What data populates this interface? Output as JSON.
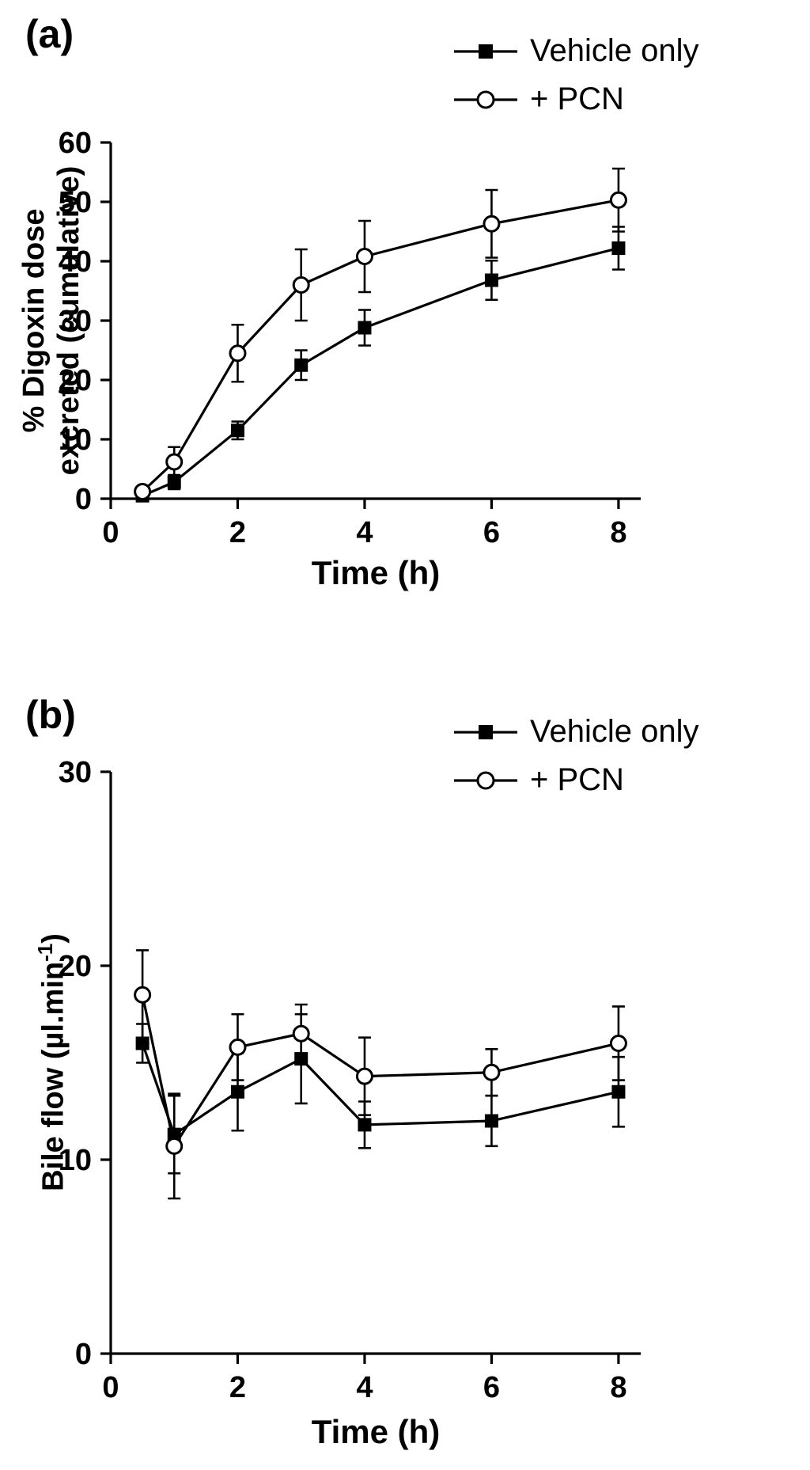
{
  "figure": {
    "panels": [
      {
        "panel_label": "(a)",
        "ylabel_line1": "% Digoxin dose",
        "ylabel_line2": "excreted (cumulative)",
        "xlabel": "Time (h)"
      },
      {
        "panel_label": "(b)",
        "ylabel_prefix": "Bile flow (µl.min",
        "ylabel_sup": "-1",
        "ylabel_suffix": ")",
        "xlabel": "Time (h)"
      }
    ],
    "colors": {
      "line": "#000000",
      "background": "#ffffff"
    }
  },
  "chart_data": [
    {
      "type": "line",
      "panel": "a",
      "title": "",
      "xlabel": "Time (h)",
      "ylabel": "% Digoxin dose excreted (cumulative)",
      "x": [
        0.5,
        1,
        2,
        3,
        4,
        6,
        8
      ],
      "xlim": [
        0,
        8.35
      ],
      "ylim": [
        0,
        60
      ],
      "xticks": [
        0,
        2,
        4,
        6,
        8
      ],
      "yticks": [
        0,
        10,
        20,
        30,
        40,
        50,
        60
      ],
      "grid": false,
      "legend_position": "top-right",
      "series": [
        {
          "name": "Vehicle only",
          "marker": "filled-square",
          "values": [
            0.5,
            2.8,
            11.5,
            22.5,
            28.8,
            36.8,
            42.2
          ],
          "errors": [
            0.6,
            1.2,
            1.5,
            2.5,
            3.0,
            3.3,
            3.6
          ]
        },
        {
          "name": "+ PCN",
          "marker": "open-circle",
          "values": [
            1.2,
            6.2,
            24.5,
            36.0,
            40.8,
            46.3,
            50.3
          ],
          "errors": [
            0.8,
            2.5,
            4.8,
            6.0,
            6.0,
            5.7,
            5.3
          ]
        }
      ]
    },
    {
      "type": "line",
      "panel": "b",
      "title": "",
      "xlabel": "Time (h)",
      "ylabel": "Bile flow (µl.min-1)",
      "x": [
        0.5,
        1,
        2,
        3,
        4,
        6,
        8
      ],
      "xlim": [
        0,
        8.35
      ],
      "ylim": [
        0,
        30
      ],
      "xticks": [
        0,
        2,
        4,
        6,
        8
      ],
      "yticks": [
        0,
        10,
        20,
        30
      ],
      "grid": false,
      "legend_position": "top-right",
      "series": [
        {
          "name": "Vehicle only",
          "marker": "filled-square",
          "values": [
            16.0,
            11.3,
            13.5,
            15.2,
            11.8,
            12.0,
            13.5
          ],
          "errors": [
            1.0,
            2.0,
            2.0,
            2.3,
            1.2,
            1.3,
            1.8
          ]
        },
        {
          "name": "+ PCN",
          "marker": "open-circle",
          "values": [
            18.5,
            10.7,
            15.8,
            16.5,
            14.3,
            14.5,
            16.0
          ],
          "errors": [
            2.3,
            2.7,
            1.7,
            1.5,
            2.0,
            1.2,
            1.9
          ]
        }
      ]
    }
  ]
}
